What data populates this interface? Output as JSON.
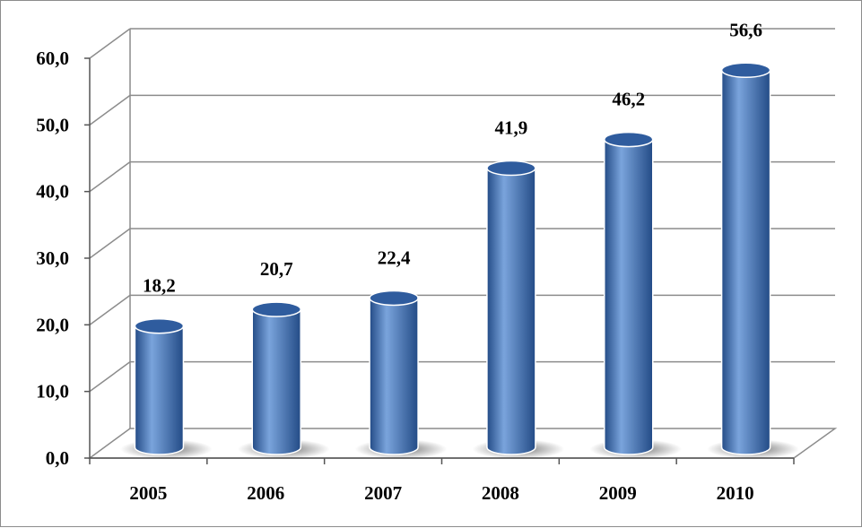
{
  "chart_data": {
    "type": "bar",
    "categories": [
      "2005",
      "2006",
      "2007",
      "2008",
      "2009",
      "2010"
    ],
    "values": [
      18.2,
      20.7,
      22.4,
      41.9,
      46.2,
      56.6
    ],
    "data_labels": [
      "18,2",
      "20,7",
      "22,4",
      "41,9",
      "46,2",
      "56,6"
    ],
    "title": "",
    "xlabel": "",
    "ylabel": "",
    "ylim": [
      0,
      60
    ],
    "yticks": [
      0,
      10,
      20,
      30,
      40,
      50,
      60
    ],
    "ytick_labels": [
      "0,0",
      "10,0",
      "20,0",
      "30,0",
      "40,0",
      "50,0",
      "60,0"
    ],
    "grid": true,
    "legend": "none",
    "bar_shape": "cylinder-3d",
    "colors": {
      "bar": "#4a7ec4",
      "bar_dark": "#234b86",
      "bar_light": "#7aa4dc",
      "top": "#2f5c9e",
      "grid": "#8c8c8c"
    }
  }
}
